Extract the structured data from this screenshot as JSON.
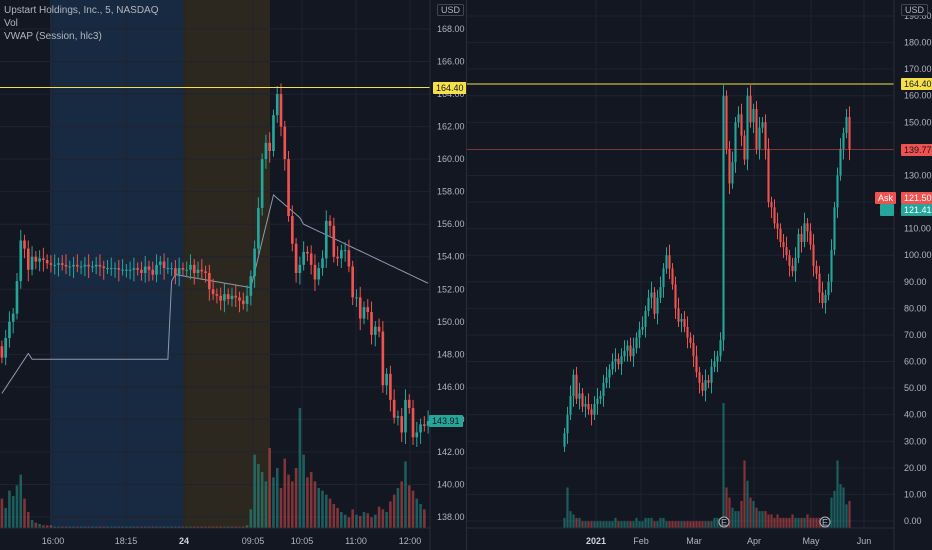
{
  "colors": {
    "up": "#26a69a",
    "down": "#ef5350",
    "hline": "#f5e04a",
    "vwap": "#8a9bb0",
    "session_pre": "#1d3a5c",
    "session_post": "#3d3320"
  },
  "left_chart": {
    "legend": {
      "symbol": "Upstart Holdings, Inc., 5, NASDAQ",
      "vol": "Vol",
      "vwap": "VWAP (Session, hlc3)"
    },
    "currency": "USD",
    "price_axis": [
      "168.00",
      "166.00",
      "164.00",
      "162.00",
      "160.00",
      "158.00",
      "156.00",
      "154.00",
      "152.00",
      "150.00",
      "148.00",
      "146.00",
      "144.00",
      "142.00",
      "140.00",
      "138.00"
    ],
    "time_axis": [
      "16:00",
      "18:15",
      "24",
      "09:05",
      "10:05",
      "11:00",
      "12:00"
    ],
    "hline_label": "164.40",
    "last_price_label": "143.91",
    "chart_data": {
      "type": "candlestick",
      "interval": "5 min",
      "ylim": [
        137,
        169
      ],
      "hline": 164.4,
      "opens": [
        148.5,
        147.8,
        149.0,
        150.0,
        150.5,
        152.5,
        155.0,
        154.5,
        153.2,
        154.0,
        153.7,
        153.9,
        153.8,
        153.6,
        153.5,
        153.5,
        153.6,
        153.5,
        153.4,
        153.4,
        153.5,
        153.4,
        153.4,
        153.5,
        153.4,
        153.4,
        153.5,
        153.4,
        153.3,
        153.3,
        153.3,
        153.3,
        153.2,
        153.2,
        153.2,
        153.2,
        153.3,
        153.2,
        153.0,
        153.4,
        153.2,
        152.9,
        153.5,
        153.7,
        153.3,
        153.3,
        153.3,
        152.9,
        153.3,
        153.2,
        153.2,
        153.5,
        153.0,
        153.2,
        153.1,
        153.0,
        152.0,
        151.7,
        151.6,
        151.3,
        151.7,
        151.4,
        151.6,
        151.5,
        151.3,
        151.1,
        151.6,
        152.8,
        154.5,
        157.0,
        160.0,
        161.0,
        160.5,
        162.7,
        164.0,
        162.0,
        160.0,
        156.5,
        154.8,
        153.0,
        153.5,
        154.3,
        154.2,
        153.5,
        152.6,
        153.3,
        153.9,
        156.2,
        155.9,
        154.0,
        153.9,
        154.4,
        154.4,
        153.4,
        151.5,
        151.5,
        150.2,
        150.9,
        150.6,
        149.2,
        149.7,
        149.4,
        146.1,
        146.8,
        145.2,
        144.1,
        144.2,
        143.2,
        145.2,
        144.7,
        142.9,
        143.2,
        143.7,
        143.6
      ],
      "closes": [
        147.8,
        149.0,
        150.0,
        150.5,
        152.5,
        155.0,
        154.5,
        153.2,
        154.0,
        153.7,
        153.9,
        153.8,
        153.6,
        153.5,
        153.5,
        153.6,
        153.5,
        153.4,
        153.4,
        153.5,
        153.4,
        153.4,
        153.5,
        153.4,
        153.4,
        153.5,
        153.4,
        153.3,
        153.3,
        153.3,
        153.3,
        153.2,
        153.2,
        153.2,
        153.2,
        153.3,
        153.2,
        153.0,
        153.4,
        153.2,
        152.9,
        153.5,
        153.7,
        153.3,
        153.3,
        153.3,
        152.9,
        153.3,
        153.2,
        153.2,
        153.5,
        153.0,
        153.2,
        153.1,
        153.0,
        152.0,
        151.7,
        151.6,
        151.3,
        151.7,
        151.4,
        151.6,
        151.5,
        151.3,
        151.1,
        151.6,
        152.8,
        154.5,
        157.0,
        160.0,
        161.0,
        160.5,
        162.7,
        164.0,
        162.0,
        160.0,
        156.5,
        154.8,
        153.0,
        153.5,
        154.3,
        154.2,
        153.5,
        152.6,
        153.3,
        153.9,
        156.2,
        155.9,
        154.0,
        153.9,
        154.4,
        154.4,
        153.4,
        151.5,
        151.5,
        150.2,
        150.9,
        150.6,
        149.2,
        149.7,
        149.4,
        146.1,
        146.8,
        145.2,
        144.1,
        144.2,
        143.2,
        145.2,
        144.7,
        142.9,
        143.2,
        143.7,
        143.6,
        143.9
      ],
      "volumes": [
        22,
        15,
        28,
        24,
        32,
        40,
        22,
        12,
        6,
        4,
        3,
        2,
        2,
        2,
        1,
        1,
        1,
        1,
        1,
        1,
        1,
        1,
        1,
        1,
        1,
        1,
        1,
        1,
        1,
        1,
        1,
        1,
        1,
        1,
        1,
        1,
        1,
        1,
        1,
        1,
        1,
        1,
        1,
        1,
        1,
        1,
        1,
        1,
        1,
        1,
        1,
        1,
        1,
        1,
        1,
        1,
        1,
        1,
        1,
        1,
        1,
        1,
        1,
        1,
        1,
        2,
        14,
        55,
        48,
        42,
        35,
        60,
        38,
        45,
        30,
        52,
        40,
        35,
        45,
        90,
        55,
        38,
        42,
        35,
        30,
        28,
        25,
        22,
        18,
        15,
        12,
        10,
        8,
        14,
        10,
        9,
        12,
        11,
        8,
        10,
        16,
        14,
        12,
        20,
        25,
        30,
        35,
        50,
        32,
        28,
        22,
        18,
        14
      ]
    }
  },
  "right_chart": {
    "currency": "USD",
    "price_axis": [
      "190.00",
      "180.00",
      "170.00",
      "160.00",
      "150.00",
      "130.00",
      "120.00",
      "110.00",
      "100.00",
      "90.00",
      "80.00",
      "70.00",
      "60.00",
      "50.00",
      "40.00",
      "30.00",
      "20.00",
      "10.00",
      "0.00"
    ],
    "time_axis": [
      "2021",
      "Feb",
      "Mar",
      "Apr",
      "May",
      "Jun"
    ],
    "hline_label": "164.40",
    "tag_price": "139.77",
    "ask_label": "Ask",
    "ask_price": "121.50",
    "bid_price": "121.41",
    "chart_data": {
      "type": "candlestick",
      "interval": "1 day",
      "ylim": [
        -3,
        195
      ],
      "hline": 164.4,
      "closes": [
        33,
        40,
        47,
        55,
        46,
        48,
        43,
        44,
        42,
        40,
        44,
        46,
        47,
        52,
        54,
        57,
        60,
        61,
        59,
        62,
        64,
        66,
        62,
        65,
        69,
        72,
        73,
        79,
        84,
        86,
        78,
        84,
        88,
        95,
        100,
        95,
        89,
        80,
        75,
        76,
        73,
        69,
        67,
        62,
        56,
        52,
        49,
        53,
        52,
        58,
        60,
        62,
        68,
        160,
        140,
        127,
        135,
        150,
        153,
        145,
        136,
        160,
        150,
        155,
        140,
        148,
        150,
        140,
        120,
        118,
        112,
        110,
        105,
        103,
        100,
        96,
        94,
        99,
        108,
        105,
        112,
        109,
        104,
        96,
        93,
        86,
        82,
        85,
        90,
        102,
        118,
        130,
        140,
        146,
        152,
        139.77
      ],
      "volumes": [
        3,
        12,
        5,
        4,
        3,
        3,
        2,
        2,
        2,
        2,
        2,
        2,
        2,
        2,
        2,
        2,
        2,
        3,
        2,
        2,
        2,
        2,
        2,
        2,
        3,
        2,
        2,
        3,
        3,
        3,
        2,
        2,
        3,
        3,
        2,
        2,
        2,
        2,
        2,
        2,
        2,
        2,
        2,
        2,
        2,
        2,
        2,
        2,
        2,
        2,
        3,
        3,
        3,
        37,
        12,
        9,
        6,
        5,
        5,
        8,
        20,
        14,
        9,
        8,
        6,
        5,
        5,
        5,
        4,
        4,
        3,
        4,
        3,
        3,
        3,
        3,
        4,
        3,
        3,
        3,
        3,
        4,
        3,
        3,
        3,
        3,
        3,
        3,
        3,
        9,
        11,
        20,
        13,
        12,
        7,
        8
      ],
      "markers": [
        "E",
        "E"
      ]
    }
  }
}
